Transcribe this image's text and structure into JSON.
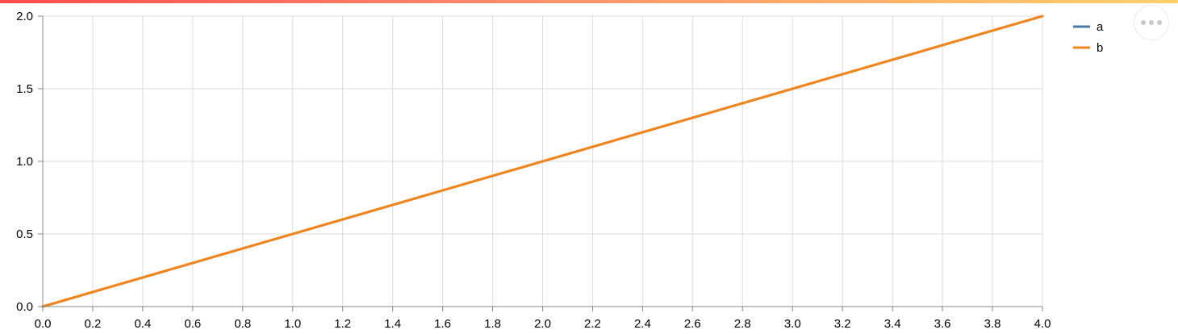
{
  "chart_data": {
    "type": "line",
    "x": [
      0.0,
      4.0
    ],
    "series": [
      {
        "name": "a",
        "color": "#4c78a8",
        "values": [
          0.0,
          2.0
        ]
      },
      {
        "name": "b",
        "color": "#f58518",
        "values": [
          0.0,
          2.0
        ]
      }
    ],
    "xlim": [
      0.0,
      4.0
    ],
    "ylim": [
      0.0,
      2.0
    ],
    "x_ticks": [
      "0.0",
      "0.2",
      "0.4",
      "0.6",
      "0.8",
      "1.0",
      "1.2",
      "1.4",
      "1.6",
      "1.8",
      "2.0",
      "2.2",
      "2.4",
      "2.6",
      "2.8",
      "3.0",
      "3.2",
      "3.4",
      "3.6",
      "3.8",
      "4.0"
    ],
    "y_ticks": [
      "0.0",
      "0.5",
      "1.0",
      "1.5",
      "2.0"
    ],
    "xlabel": "",
    "ylabel": "",
    "grid": true,
    "legend": "top-right"
  },
  "toolbar": {
    "more_icon": "more-horizontal-icon"
  }
}
